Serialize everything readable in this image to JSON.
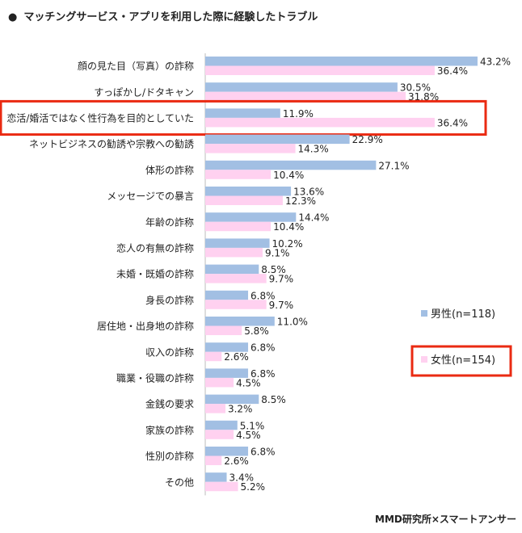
{
  "title": "マッチングサービス・アプリを利用した際に経験したトラブル",
  "title_bullet": "●",
  "source": "MMD研究所×スマートアンサー",
  "colors": {
    "male": "#a2bfe3",
    "female": "#ffd1f0",
    "highlight": "#ea2a12"
  },
  "chart_data": {
    "type": "bar",
    "orientation": "horizontal",
    "unit": "%",
    "categories": [
      "顔の見た目（写真）の詐称",
      "すっぽかし/ドタキャン",
      "恋活/婚活ではなく性行為を目的としていた",
      "ネットビジネスの勧誘や宗教への勧誘",
      "体形の詐称",
      "メッセージでの暴言",
      "年齢の詐称",
      "恋人の有無の詐称",
      "未婚・既婚の詐称",
      "身長の詐称",
      "居住地・出身地の詐称",
      "収入の詐称",
      "職業・役職の詐称",
      "金銭の要求",
      "家族の詐称",
      "性別の詐称",
      "その他"
    ],
    "series": [
      {
        "name": "男性(n=118)",
        "values": [
          43.2,
          30.5,
          11.9,
          22.9,
          27.1,
          13.6,
          14.4,
          10.2,
          8.5,
          6.8,
          11.0,
          6.8,
          6.8,
          8.5,
          5.1,
          6.8,
          3.4
        ]
      },
      {
        "name": "女性(n=154)",
        "values": [
          36.4,
          31.8,
          36.4,
          14.3,
          10.4,
          12.3,
          10.4,
          9.1,
          9.7,
          9.7,
          5.8,
          2.6,
          4.5,
          3.2,
          4.5,
          2.6,
          5.2
        ]
      }
    ],
    "highlighted_category": "恋活/婚活ではなく性行為を目的としていた",
    "highlighted_legend": "女性(n=154)",
    "xlim": [
      0,
      50
    ],
    "legend_position": "right"
  }
}
